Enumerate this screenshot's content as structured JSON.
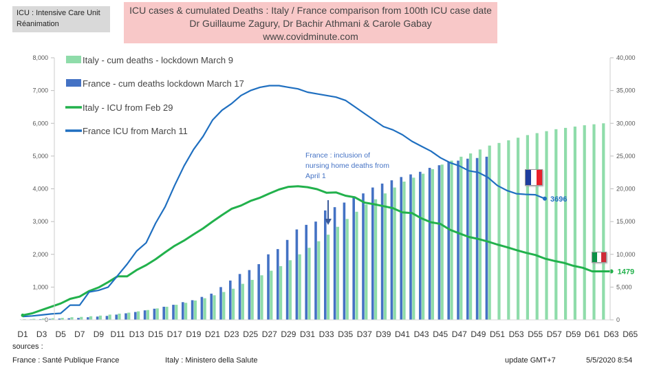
{
  "header": {
    "tag_line1": "ICU : Intensive Care Unit",
    "tag_line2": "Réanimation",
    "title_line1": "ICU cases  & cumulated Deaths : Italy / France comparison from 100th ICU case date",
    "title_line2": "Dr Guillaume Zagury, Dr Bachir Athmani & Carole Gabay",
    "title_line3": "www.covidminute.com"
  },
  "footer": {
    "sources_label": "sources :",
    "france_source": "France : Santé Publique France",
    "italy_source": "Italy : Ministero della Salute",
    "update_label": "update GMT+7",
    "update_time": "5/5/2020 8:54"
  },
  "annotation": {
    "line1": "France : inclusion of",
    "line2": "nursing home deaths from",
    "line3": "April 1"
  },
  "colors": {
    "italy_deaths": "#8fdcaa",
    "france_deaths": "#4472c4",
    "italy_icu": "#22b14c",
    "france_icu": "#1f6fc0",
    "annotation": "#4472c4",
    "title_bg": "#f8c8c8"
  },
  "chart_data": {
    "type": "bar+line",
    "x_tick_labels": [
      "D1",
      "D3",
      "D5",
      "D7",
      "D9",
      "D11",
      "D13",
      "D15",
      "D17",
      "D19",
      "D21",
      "D23",
      "D25",
      "D27",
      "D29",
      "D31",
      "D33",
      "D35",
      "D37",
      "D39",
      "D41",
      "D43",
      "D45",
      "D47",
      "D49",
      "D51",
      "D53",
      "D55",
      "D57",
      "D59",
      "D61",
      "D63",
      "D65"
    ],
    "y_left_ticks": [
      "0",
      "1,000",
      "2,000",
      "3,000",
      "4,000",
      "5,000",
      "6,000",
      "7,000",
      "8,000"
    ],
    "y_left_lim": [
      0,
      8000
    ],
    "y_right_ticks": [
      "0",
      "5,000",
      "10,000",
      "15,000",
      "20,000",
      "25,000",
      "30,000",
      "35,000",
      "40,000"
    ],
    "y_right_lim": [
      0,
      40000
    ],
    "legend_position": "top-left",
    "legend": [
      {
        "label": "Italy - cum deaths - lockdown March 9",
        "kind": "bar",
        "color": "#8fdcaa"
      },
      {
        "label": "France - cum deaths lockdown March 17",
        "kind": "bar",
        "color": "#4472c4"
      },
      {
        "label": "Italy - ICU from Feb 29",
        "kind": "line",
        "color": "#22b14c"
      },
      {
        "label": "France ICU from March 11",
        "kind": "line",
        "color": "#1f6fc0"
      }
    ],
    "series": [
      {
        "name": "Italy - cum deaths - lockdown March 9",
        "type": "bar",
        "axis": "right",
        "values": [
          100,
          150,
          200,
          250,
          300,
          400,
          450,
          550,
          650,
          800,
          950,
          1100,
          1300,
          1500,
          1750,
          2000,
          2300,
          2600,
          2950,
          3300,
          3750,
          4250,
          4750,
          5500,
          6100,
          6800,
          7500,
          8200,
          9100,
          10000,
          11000,
          12000,
          13000,
          14200,
          15400,
          16500,
          17600,
          18400,
          19300,
          20200,
          21100,
          21700,
          22300,
          23000,
          23700,
          24300,
          24900,
          25400,
          26000,
          26600,
          27000,
          27400,
          27800,
          28200,
          28500,
          28800,
          29100,
          29300,
          29500,
          29700,
          29850,
          30000
        ]
      },
      {
        "name": "France - cum deaths lockdown March 17",
        "type": "bar",
        "axis": "right",
        "values": [
          50,
          80,
          110,
          150,
          200,
          250,
          300,
          400,
          500,
          600,
          800,
          1000,
          1200,
          1450,
          1700,
          2000,
          2300,
          2700,
          3000,
          3500,
          4000,
          5000,
          6000,
          7000,
          7600,
          8500,
          10000,
          10800,
          12200,
          13800,
          14500,
          15000,
          16700,
          17200,
          17900,
          18700,
          19300,
          20200,
          20800,
          21300,
          21800,
          22200,
          22600,
          23200,
          23600,
          24100,
          24300,
          24600,
          24700,
          24900
        ]
      },
      {
        "name": "Italy - ICU from Feb 29",
        "type": "line",
        "axis": "left",
        "values": [
          140,
          200,
          300,
          400,
          500,
          640,
          710,
          880,
          990,
          1150,
          1330,
          1330,
          1520,
          1670,
          1850,
          2060,
          2260,
          2420,
          2610,
          2790,
          3000,
          3200,
          3390,
          3490,
          3630,
          3730,
          3860,
          3980,
          4060,
          4080,
          4050,
          3990,
          3880,
          3890,
          3790,
          3740,
          3580,
          3530,
          3470,
          3410,
          3280,
          3260,
          3100,
          2980,
          2930,
          2750,
          2640,
          2530,
          2470,
          2390,
          2300,
          2220,
          2130,
          2050,
          1980,
          1870,
          1800,
          1740,
          1650,
          1590,
          1480,
          1480,
          1480
        ]
      },
      {
        "name": "France ICU from March 11",
        "type": "line",
        "axis": "left",
        "values": [
          100,
          120,
          150,
          180,
          200,
          450,
          450,
          850,
          900,
          1000,
          1350,
          1700,
          2100,
          2350,
          2950,
          3450,
          4100,
          4700,
          5200,
          5600,
          6100,
          6400,
          6600,
          6850,
          7000,
          7100,
          7150,
          7150,
          7100,
          7050,
          6950,
          6900,
          6850,
          6800,
          6700,
          6500,
          6300,
          6100,
          5900,
          5800,
          5650,
          5450,
          5300,
          5150,
          4950,
          4800,
          4700,
          4550,
          4500,
          4350,
          4100,
          3950,
          3850,
          3830,
          3820,
          3700
        ]
      }
    ],
    "end_labels": [
      {
        "series": "France ICU from March 11",
        "text": "3696"
      },
      {
        "series": "Italy - ICU from Feb 29",
        "text": "1479"
      }
    ]
  }
}
